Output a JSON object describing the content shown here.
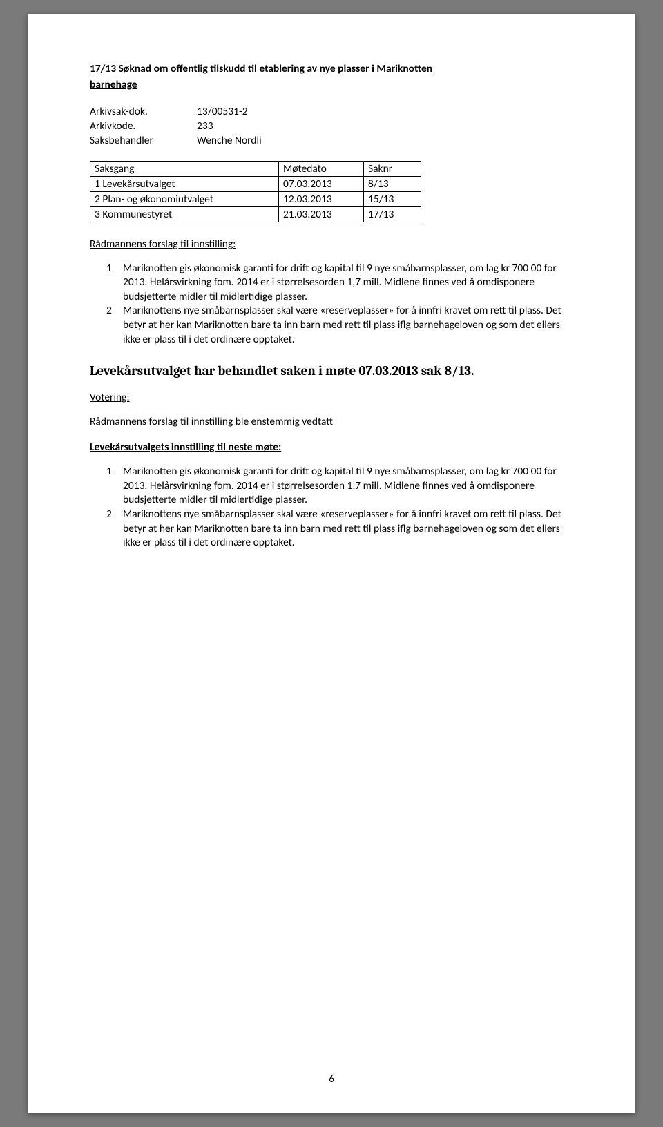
{
  "title1": "17/13 Søknad om offentlig tilskudd til etablering av nye plasser i Mariknotten",
  "title2": "barnehage",
  "meta": [
    {
      "label": "Arkivsak-dok.",
      "value": "13/00531-2"
    },
    {
      "label": "Arkivkode.",
      "value": "233"
    },
    {
      "label": "Saksbehandler",
      "value": "Wenche Nordli"
    }
  ],
  "saksgang": {
    "headers": [
      "Saksgang",
      "Møtedato",
      "Saknr"
    ],
    "rows": [
      [
        "1 Levekårsutvalget",
        "07.03.2013",
        "8/13"
      ],
      [
        "2 Plan- og økonomiutvalget",
        "12.03.2013",
        "15/13"
      ],
      [
        "3 Kommunestyret",
        "21.03.2013",
        "17/13"
      ]
    ]
  },
  "radmannens_label": "Rådmannens forslag til innstilling:",
  "list1": [
    {
      "num": "1",
      "text": "Mariknotten gis økonomisk garanti for drift og kapital til 9 nye småbarnsplasser, om lag kr 700 00 for 2013. Helårsvirkning fom. 2014 er i størrelsesorden 1,7 mill. Midlene finnes ved å omdisponere budsjetterte midler til midlertidige plasser."
    },
    {
      "num": "2",
      "text": "Mariknottens nye småbarnsplasser skal være «reserveplasser» for å innfri kravet om rett til plass. Det betyr at her kan Mariknotten bare ta inn barn med rett til plass iflg barnehageloven og som det ellers ikke er plass til i det ordinære opptaket."
    }
  ],
  "big_heading": "Levekårsutvalget har behandlet saken i møte 07.03.2013 sak 8/13.",
  "votering_label": "Votering:",
  "plain_line": "Rådmannens forslag til innstilling ble enstemmig vedtatt",
  "innstilling_label": "Levekårsutvalgets innstilling til neste møte:",
  "list2": [
    {
      "num": "1",
      "text": "Mariknotten gis økonomisk garanti for drift og kapital til 9 nye småbarnsplasser, om lag kr 700 00 for 2013. Helårsvirkning fom. 2014 er i størrelsesorden 1,7 mill. Midlene finnes ved å omdisponere budsjetterte midler til midlertidige plasser."
    },
    {
      "num": "2",
      "text": "Mariknottens nye småbarnsplasser skal være «reserveplasser» for å innfri kravet om rett til plass. Det betyr at her kan Mariknotten bare ta inn barn med rett til plass iflg barnehageloven og som det ellers ikke er plass til i det ordinære opptaket."
    }
  ],
  "page_number": "6"
}
